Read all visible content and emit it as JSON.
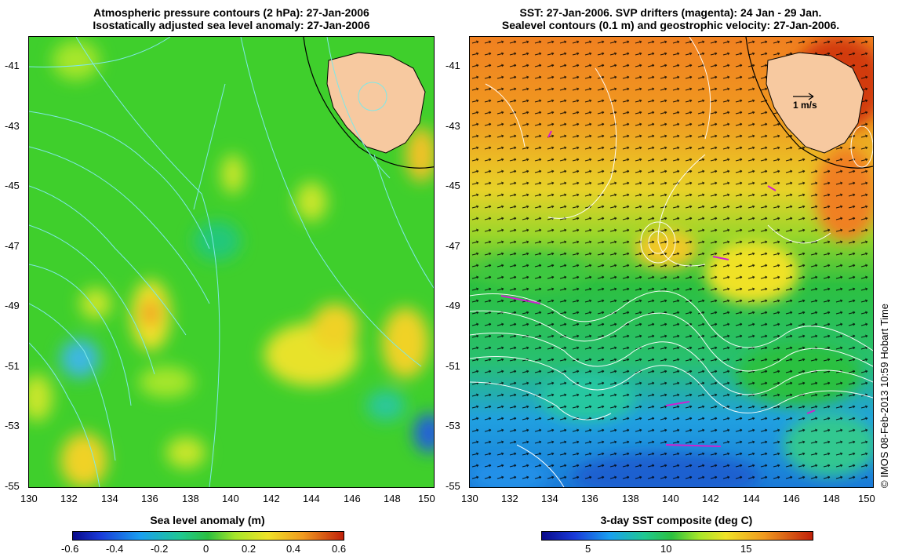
{
  "left_panel": {
    "title_line1": "Atmospheric pressure contours (2 hPa): 27-Jan-2006",
    "title_line2": "Isostatically adjusted sea level anomaly: 27-Jan-2006",
    "y_ticks": [
      "-41",
      "-43",
      "-45",
      "-47",
      "-49",
      "-51",
      "-53",
      "-55"
    ],
    "x_ticks": [
      "130",
      "132",
      "134",
      "136",
      "138",
      "140",
      "142",
      "144",
      "146",
      "148",
      "150"
    ],
    "colorbar": {
      "title": "Sea level anomaly (m)",
      "ticks": [
        "-0.6",
        "-0.4",
        "-0.2",
        "0",
        "0.2",
        "0.4",
        "0.6"
      ],
      "range": [
        -0.6,
        0.6
      ]
    }
  },
  "right_panel": {
    "title_line1": "SST: 27-Jan-2006. SVP drifters (magenta): 24 Jan - 29 Jan.",
    "title_line2": "Sealevel contours (0.1 m) and geostrophic velocity: 27-Jan-2006.",
    "y_ticks": [
      "-41",
      "-43",
      "-45",
      "-47",
      "-49",
      "-51",
      "-53",
      "-55"
    ],
    "x_ticks": [
      "130",
      "132",
      "134",
      "136",
      "138",
      "140",
      "142",
      "144",
      "146",
      "148",
      "150"
    ],
    "scale_label": "1 m/s",
    "colorbar": {
      "title": "3-day SST composite (deg C)",
      "ticks": [
        "5",
        "10",
        "15"
      ],
      "range": [
        2,
        19
      ]
    }
  },
  "credit": "© IMOS 08-Feb-2013 10:59 Hobart Time",
  "map_extent": {
    "lon": [
      130,
      150
    ],
    "lat": [
      -55,
      -40
    ]
  },
  "colors": {
    "land": "#f7c9a0",
    "contour_left": "#7fe8e8",
    "contour_right": "#ffffff",
    "drifter": "#d020d0"
  }
}
